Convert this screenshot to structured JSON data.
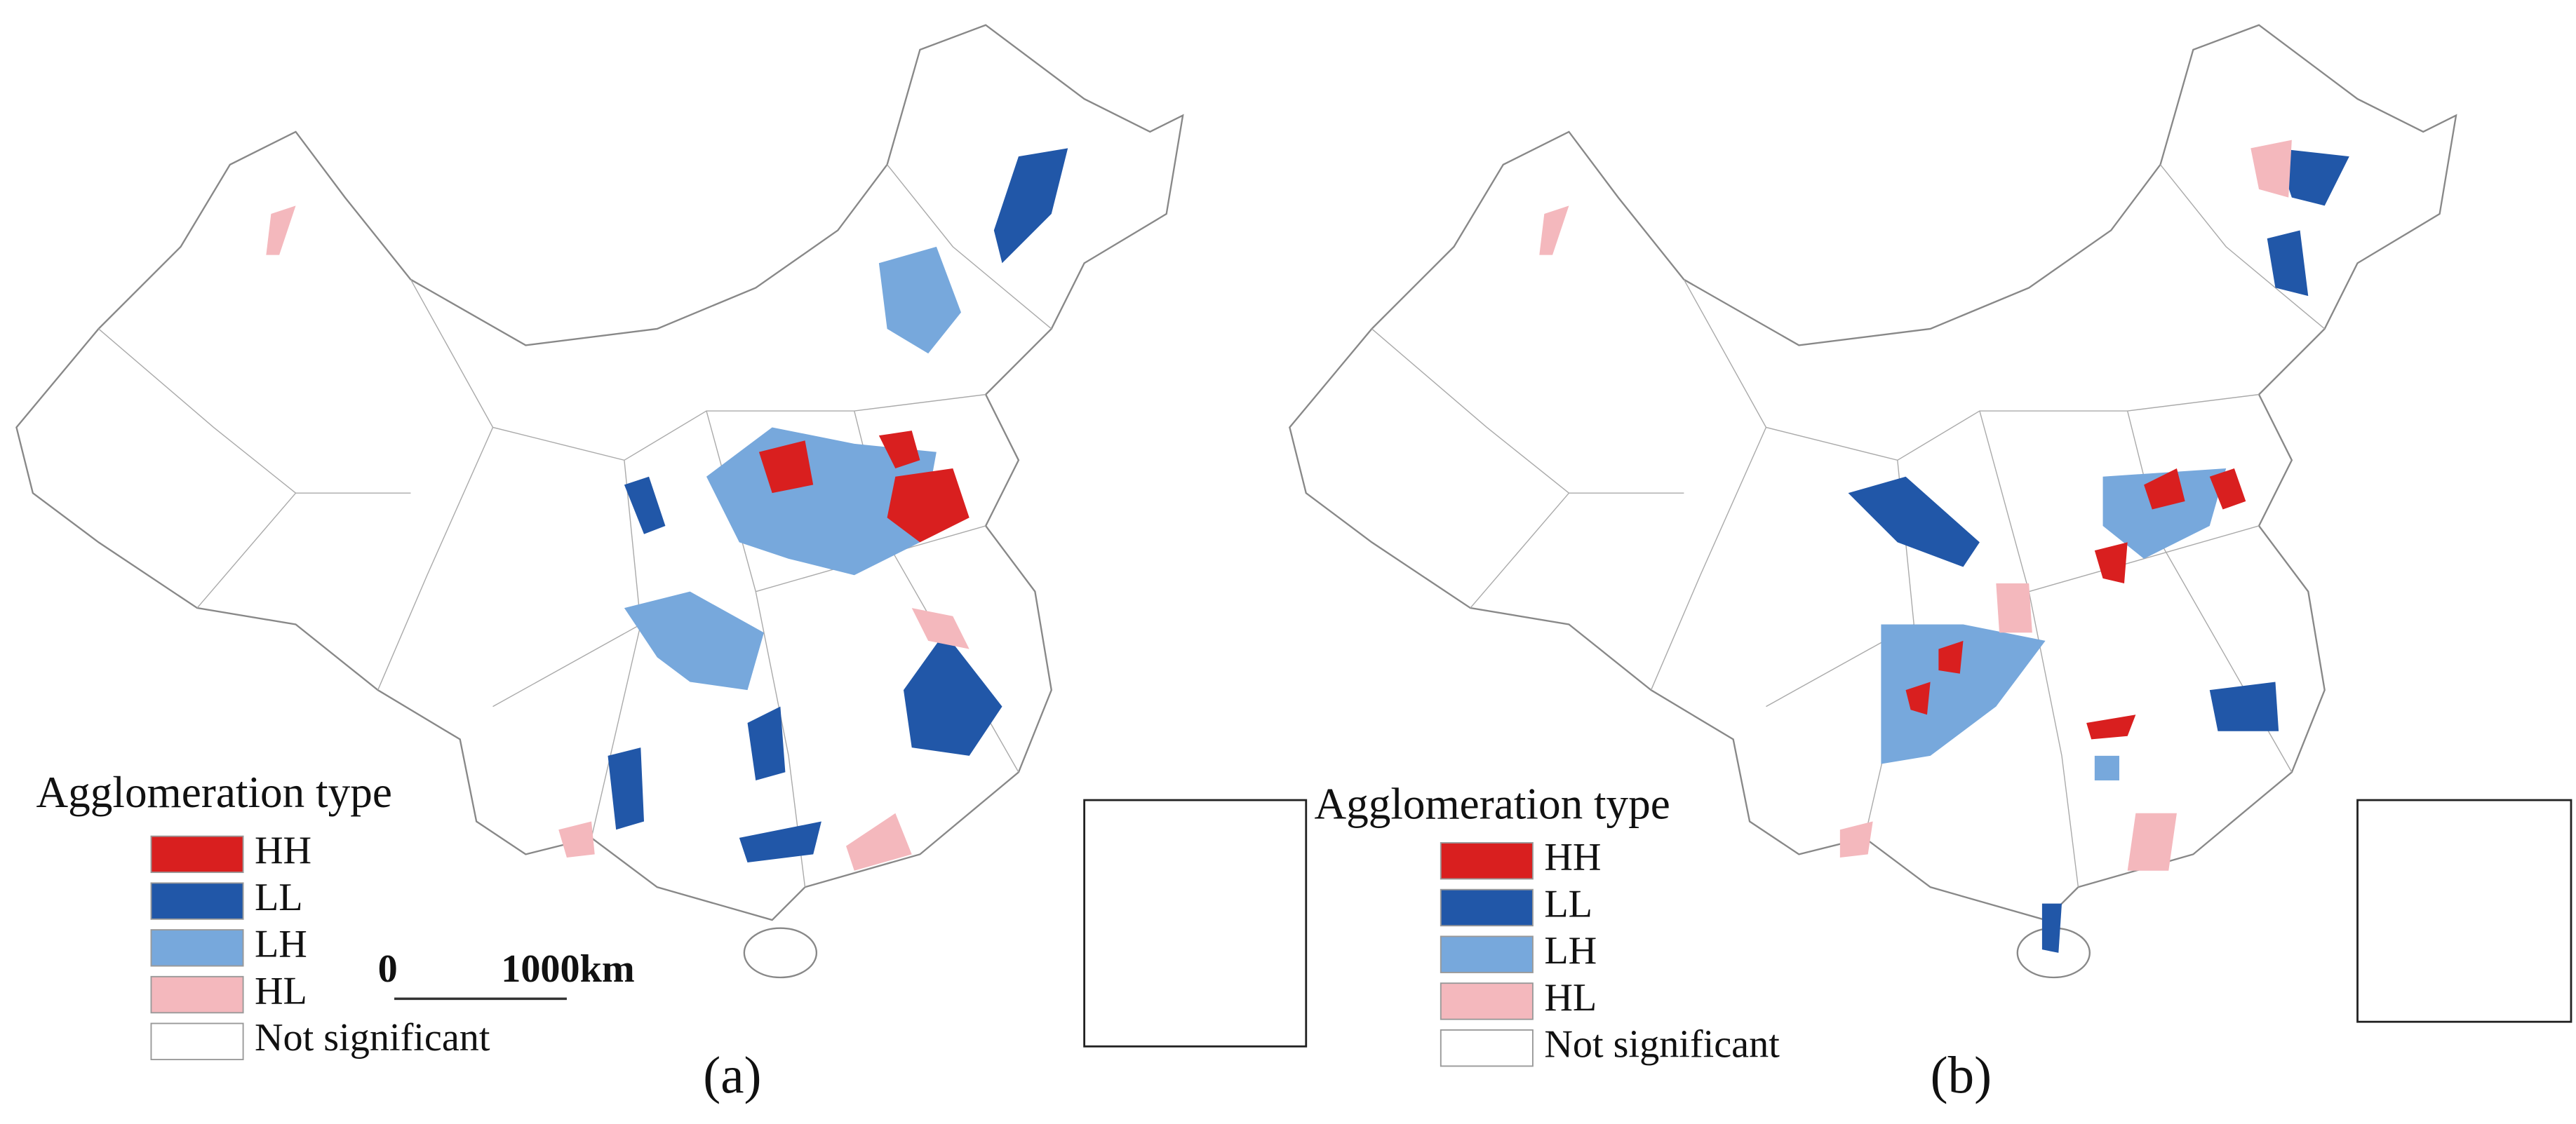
{
  "panels": [
    {
      "label": "(a)",
      "legend_title": "Agglomeration type",
      "legend": [
        {
          "name": "HH",
          "color": "#d91f1f"
        },
        {
          "name": "LL",
          "color": "#2157a8"
        },
        {
          "name": "LH",
          "color": "#77a8dc"
        },
        {
          "name": "HL",
          "color": "#f4b8bd"
        },
        {
          "name": "Not significant",
          "color": "#ffffff"
        }
      ],
      "scale_bar": {
        "start_label": "0",
        "end_label": "1000km"
      }
    },
    {
      "label": "(b)",
      "legend_title": "Agglomeration type",
      "legend": [
        {
          "name": "HH",
          "color": "#d91f1f"
        },
        {
          "name": "LL",
          "color": "#2157a8"
        },
        {
          "name": "LH",
          "color": "#77a8dc"
        },
        {
          "name": "HL",
          "color": "#f4b8bd"
        },
        {
          "name": "Not significant",
          "color": "#ffffff"
        }
      ]
    }
  ]
}
